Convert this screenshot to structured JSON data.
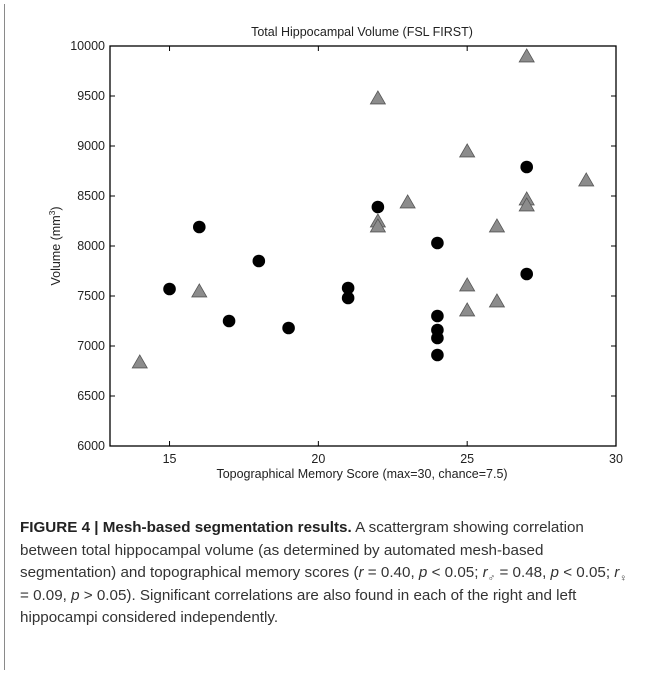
{
  "chart_data": {
    "type": "scatter",
    "title": "Total Hippocampal Volume (FSL FIRST)",
    "xlabel": "Topographical Memory Score (max=30, chance=7.5)",
    "ylabel_main": "Volume (mm",
    "ylabel_sup": "3",
    "ylabel_close": ")",
    "xlim": [
      13,
      30
    ],
    "ylim": [
      6000,
      10000
    ],
    "xticks": [
      15,
      20,
      25,
      30
    ],
    "yticks": [
      6000,
      6500,
      7000,
      7500,
      8000,
      8500,
      9000,
      9500,
      10000
    ],
    "grid": false,
    "series": [
      {
        "marker": "circle",
        "color": "#000000",
        "points": [
          [
            15,
            7570
          ],
          [
            16,
            8190
          ],
          [
            17,
            7250
          ],
          [
            18,
            7850
          ],
          [
            19,
            7180
          ],
          [
            21,
            7580
          ],
          [
            21,
            7480
          ],
          [
            22,
            8390
          ],
          [
            24,
            8030
          ],
          [
            24,
            7300
          ],
          [
            24,
            7160
          ],
          [
            24,
            7080
          ],
          [
            24,
            6910
          ],
          [
            27,
            8790
          ],
          [
            27,
            7720
          ]
        ]
      },
      {
        "marker": "triangle",
        "color": "#8c8c8c",
        "points": [
          [
            14,
            6830
          ],
          [
            16,
            7540
          ],
          [
            22,
            9470
          ],
          [
            22,
            8240
          ],
          [
            22,
            8190
          ],
          [
            23,
            8430
          ],
          [
            25,
            8940
          ],
          [
            25,
            7600
          ],
          [
            25,
            7350
          ],
          [
            26,
            8190
          ],
          [
            26,
            7440
          ],
          [
            27,
            9890
          ],
          [
            27,
            8460
          ],
          [
            27,
            8400
          ],
          [
            29,
            8650
          ]
        ]
      }
    ]
  },
  "caption": {
    "figure_label": "FIGURE 4 | Mesh-based segmentation results.",
    "text_1": " A scattergram showing correlation between total hippocampal volume (as determined by automated mesh-based segmentation) and topographical memory scores (",
    "stat_r": "r",
    "text_2": " = 0.40, ",
    "stat_p1": "p",
    "text_3": " < 0.05; ",
    "stat_r_male": "r",
    "male_symbol": "♂",
    "text_4": " = 0.48, ",
    "stat_p2": "p",
    "text_5": " < 0.05; ",
    "stat_r_female": "r",
    "female_symbol": "♀",
    "text_6": " = 0.09, ",
    "stat_p3": "p",
    "text_7": " > 0.05). Significant correlations are also found in each of the right and left hippocampi considered independently."
  }
}
